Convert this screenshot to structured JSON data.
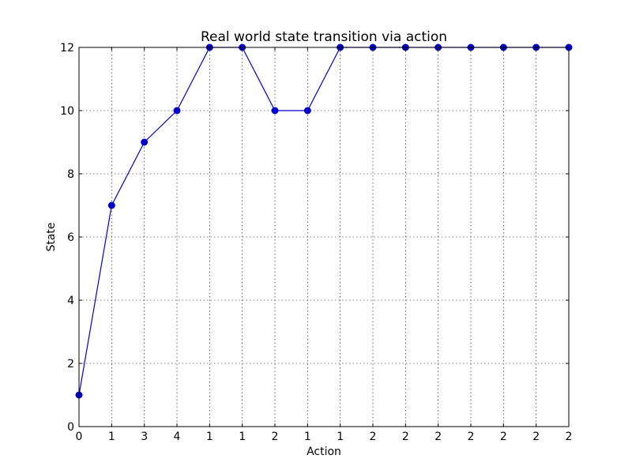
{
  "chart_data": {
    "type": "line",
    "title": "Real world state transition via action",
    "xlabel": "Action",
    "ylabel": "State",
    "categories": [
      "0",
      "1",
      "3",
      "4",
      "1",
      "1",
      "2",
      "1",
      "1",
      "2",
      "2",
      "2",
      "2",
      "2",
      "2",
      "2"
    ],
    "series": [
      {
        "values": [
          1,
          7,
          9,
          10,
          12,
          12,
          10,
          10,
          12,
          12,
          12,
          12,
          12,
          12,
          12,
          12
        ],
        "color": "#0000cc",
        "marker": "circle"
      }
    ],
    "ylim": [
      0,
      12
    ],
    "y_ticks": [
      "0",
      "2",
      "4",
      "6",
      "8",
      "10",
      "12"
    ],
    "grid": true,
    "legend": "none"
  }
}
